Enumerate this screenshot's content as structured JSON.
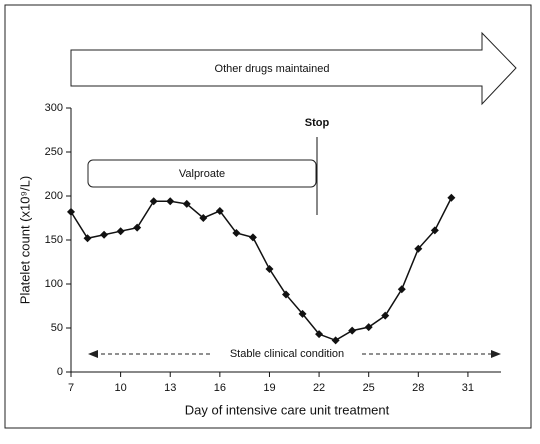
{
  "chart_data": {
    "type": "line",
    "x_label": "Day of intensive care unit treatment",
    "y_label": "Platelet count (x10⁹/L)",
    "annotations": [
      "Other drugs maintained",
      "Valproate",
      "Stop",
      "Stable clinical condition"
    ],
    "x": [
      7,
      8,
      9,
      10,
      11,
      12,
      13,
      14,
      15,
      16,
      17,
      18,
      19,
      20,
      21,
      22,
      23,
      24,
      25,
      26,
      27,
      28,
      29,
      30
    ],
    "values": [
      182,
      152,
      156,
      160,
      164,
      194,
      194,
      191,
      175,
      183,
      158,
      153,
      117,
      88,
      66,
      43,
      36,
      47,
      51,
      64,
      94,
      140,
      161,
      198
    ],
    "color": "#111111",
    "xlim": [
      7,
      33
    ],
    "xticks": [
      7,
      10,
      13,
      16,
      19,
      22,
      25,
      28,
      31
    ],
    "ylim": [
      0,
      300
    ],
    "yticks": [
      0,
      50,
      100,
      150,
      200,
      250,
      300
    ]
  }
}
